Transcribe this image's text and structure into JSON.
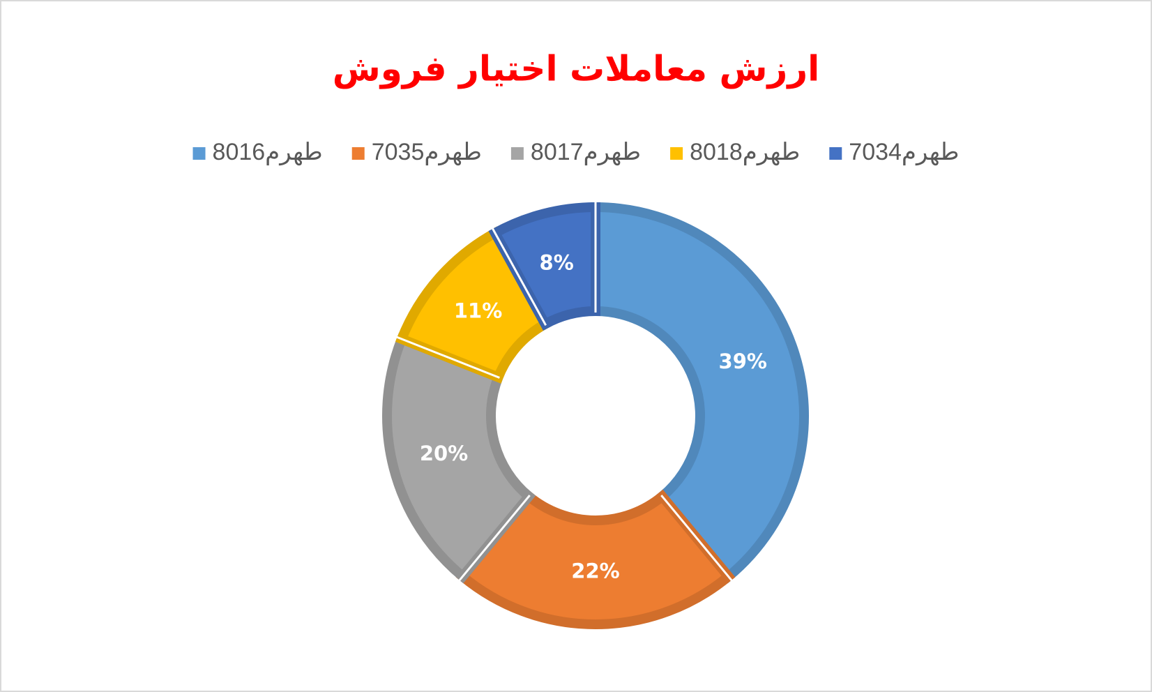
{
  "chart_data": {
    "type": "donut",
    "title": "ارزش معاملات اختیار فروش",
    "categories": [
      "طهرم8016",
      "طهرم7035",
      "طهرم8017",
      "طهرم8018",
      "طهرم7034"
    ],
    "values": [
      39,
      22,
      20,
      11,
      8
    ],
    "value_labels": [
      "39%",
      "22%",
      "20%",
      "11%",
      "8%"
    ],
    "colors": [
      "#5b9bd5",
      "#ed7d31",
      "#a5a5a5",
      "#ffc000",
      "#4472c4"
    ],
    "legend": "top"
  }
}
